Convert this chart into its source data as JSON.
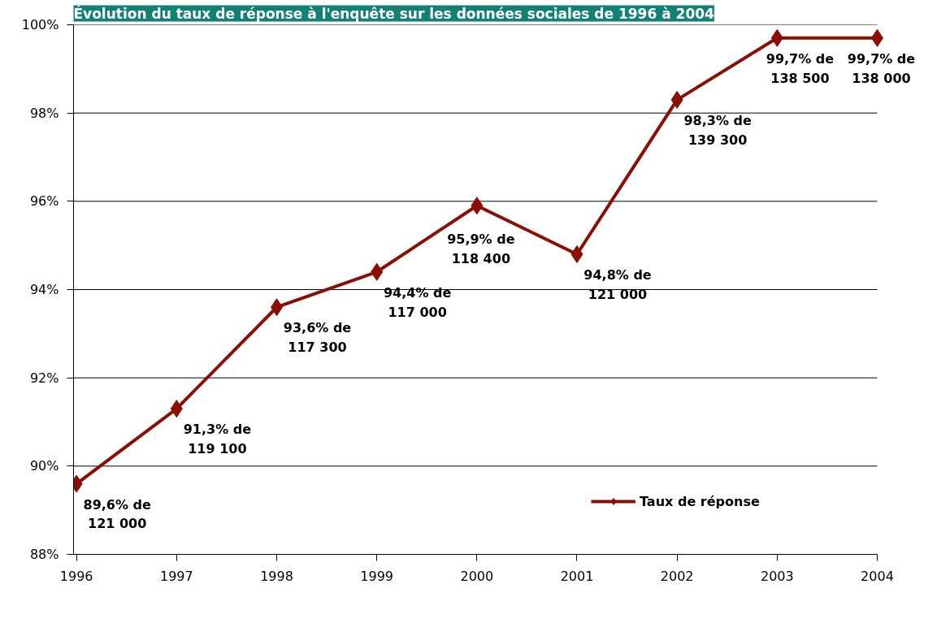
{
  "chart_data": {
    "type": "line",
    "title": "Évolution du taux de réponse à l'enquête sur les données sociales de 1996 à 2004",
    "categories": [
      "1996",
      "1997",
      "1998",
      "1999",
      "2000",
      "2001",
      "2002",
      "2003",
      "2004"
    ],
    "series": [
      {
        "name": "Taux de réponse",
        "color": "#8b0d03",
        "values": [
          89.6,
          91.3,
          93.6,
          94.4,
          95.9,
          94.8,
          98.3,
          99.7,
          99.7
        ],
        "value_labels": [
          "89,6% de\n121 000",
          "91,3% de\n119 100",
          "93,6% de\n117 300",
          "94,4% de\n117 000",
          "95,9% de\n118 400",
          "94,8% de\n121 000",
          "98,3% de\n139 300",
          "99,7% de\n138 500",
          "99,7% de\n138 000"
        ]
      }
    ],
    "ylim": [
      88,
      100
    ],
    "yticks": [
      {
        "value": 88,
        "label": "88%"
      },
      {
        "value": 90,
        "label": "90%"
      },
      {
        "value": 92,
        "label": "92%"
      },
      {
        "value": 94,
        "label": "94%"
      },
      {
        "value": 96,
        "label": "96%"
      },
      {
        "value": 98,
        "label": "98%"
      },
      {
        "value": 100,
        "label": "100%"
      }
    ],
    "grid": "y",
    "legend": "bottom right",
    "marker": "diamond",
    "line_style": "solid"
  }
}
